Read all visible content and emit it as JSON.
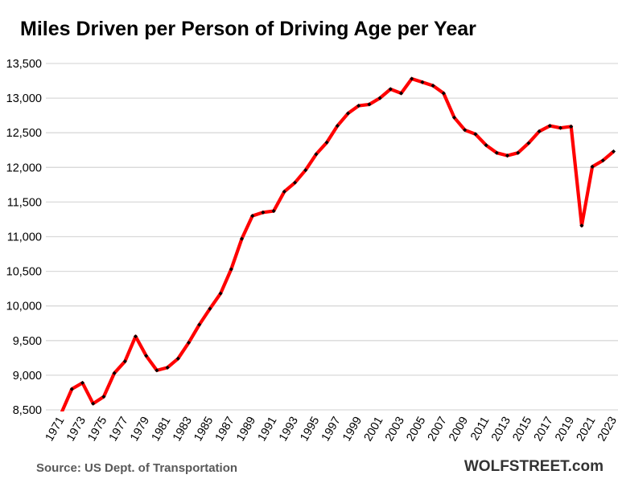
{
  "chart_data": {
    "type": "line",
    "title": "Miles Driven per Person of Driving Age per Year",
    "source": "Source: US Dept. of Transportation",
    "brand": "WOLFSTREET.com",
    "xlabel": "",
    "ylabel": "",
    "ylim": [
      8500,
      13500
    ],
    "yticks": [
      8500,
      9000,
      9500,
      10000,
      10500,
      11000,
      11500,
      12000,
      12500,
      13000,
      13500
    ],
    "ytick_labels": [
      "8,500",
      "9,000",
      "9,500",
      "10,000",
      "10,500",
      "11,000",
      "11,500",
      "12,000",
      "12,500",
      "13,000",
      "13,500"
    ],
    "xtick_labels": [
      "1971",
      "1973",
      "1975",
      "1977",
      "1979",
      "1981",
      "1983",
      "1985",
      "1987",
      "1989",
      "1991",
      "1993",
      "1995",
      "1997",
      "1999",
      "2001",
      "2003",
      "2005",
      "2007",
      "2009",
      "2011",
      "2013",
      "2015",
      "2017",
      "2019",
      "2021",
      "2023"
    ],
    "grid": true,
    "line_color": "#ff0000",
    "marker_color": "#000000",
    "x": [
      1971,
      1972,
      1973,
      1974,
      1975,
      1976,
      1977,
      1978,
      1979,
      1980,
      1981,
      1982,
      1983,
      1984,
      1985,
      1986,
      1987,
      1988,
      1989,
      1990,
      1991,
      1992,
      1993,
      1994,
      1995,
      1996,
      1997,
      1998,
      1999,
      2000,
      2001,
      2002,
      2003,
      2004,
      2005,
      2006,
      2007,
      2008,
      2009,
      2010,
      2011,
      2012,
      2013,
      2014,
      2015,
      2016,
      2017,
      2018,
      2019,
      2020,
      2021,
      2022,
      2023
    ],
    "values": [
      8450,
      8800,
      8890,
      8590,
      8690,
      9030,
      9200,
      9560,
      9280,
      9070,
      9110,
      9240,
      9470,
      9730,
      9960,
      10180,
      10530,
      10970,
      11300,
      11350,
      11370,
      11650,
      11780,
      11960,
      12190,
      12360,
      12600,
      12780,
      12890,
      12910,
      13000,
      13130,
      13070,
      13280,
      13230,
      13180,
      13070,
      12720,
      12540,
      12480,
      12320,
      12210,
      12170,
      12210,
      12350,
      12520,
      12600,
      12570,
      12590,
      11160,
      12010,
      12100,
      12230
    ]
  }
}
